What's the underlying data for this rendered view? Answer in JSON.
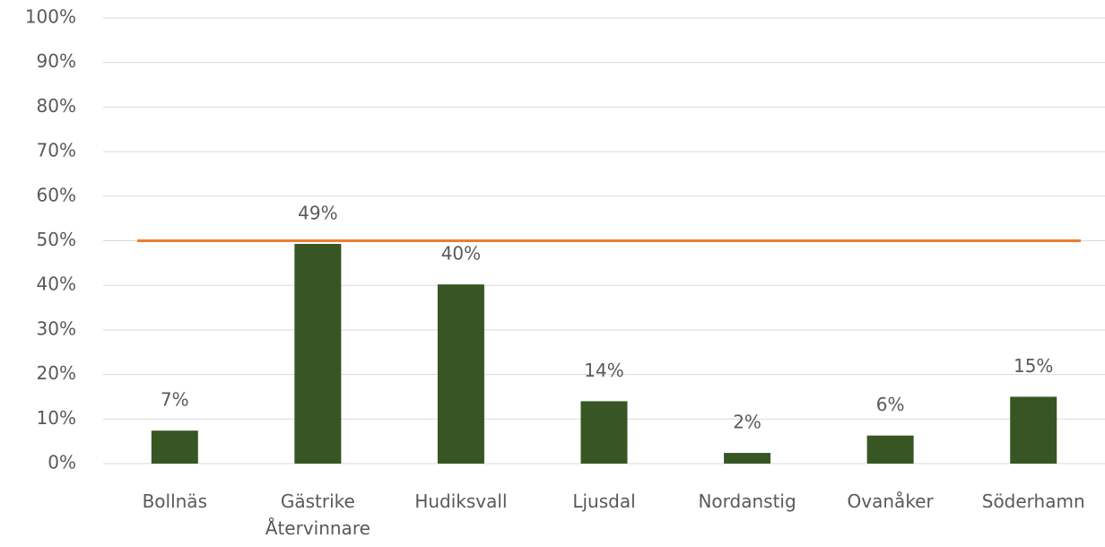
{
  "chart_data": {
    "type": "bar",
    "categories": [
      "Bollnäs",
      "Gästrike Återvinnare",
      "Hudiksvall",
      "Ljusdal",
      "Nordanstig",
      "Ovanåker",
      "Söderhamn"
    ],
    "values": [
      7.4,
      49.3,
      40.2,
      14,
      2.4,
      6.3,
      15
    ],
    "value_labels": [
      "7%",
      "49%",
      "40%",
      "14%",
      "2%",
      "6%",
      "15%"
    ],
    "color": "#375623",
    "ylim": [
      0,
      100
    ],
    "yticks": [
      {
        "value": 0,
        "label": "0%"
      },
      {
        "value": 10,
        "label": "10%"
      },
      {
        "value": 20,
        "label": "20%"
      },
      {
        "value": 30,
        "label": "30%"
      },
      {
        "value": 40,
        "label": "40%"
      },
      {
        "value": 50,
        "label": "50%"
      },
      {
        "value": 60,
        "label": "60%"
      },
      {
        "value": 70,
        "label": "70%"
      },
      {
        "value": 80,
        "label": "80%"
      },
      {
        "value": 90,
        "label": "90%"
      },
      {
        "value": 100,
        "label": "100%"
      }
    ],
    "grid": true,
    "reference_line": {
      "value": 50,
      "color": "#ed7d31"
    }
  }
}
